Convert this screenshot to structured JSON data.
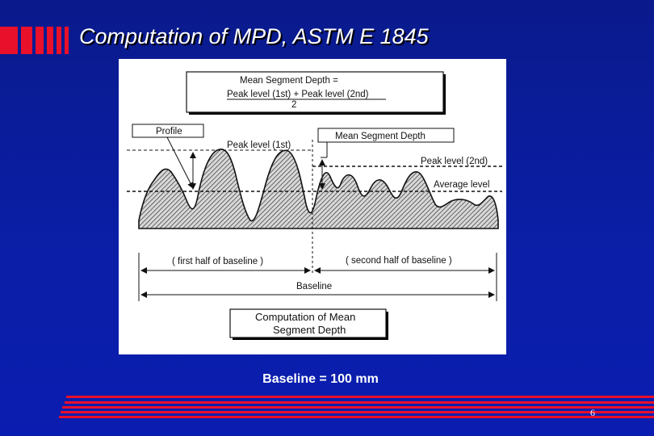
{
  "slide": {
    "title": "Computation of MPD, ASTM E 1845",
    "caption": "Baseline = 100 mm",
    "page_number": "6"
  },
  "diagram": {
    "formula": {
      "line1": "Mean Segment Depth =",
      "line2": "Peak level (1st) + Peak level (2nd)",
      "line3": "2"
    },
    "labels": {
      "profile": "Profile",
      "peak_first": "Peak level (1st)",
      "mean_segment_depth": "Mean Segment Depth",
      "peak_second": "Peak level (2nd)",
      "average_level": "Average level",
      "first_half": "( first half of baseline )",
      "second_half": "( second half of baseline )",
      "baseline": "Baseline"
    },
    "bottom_box": {
      "line1": "Computation of Mean",
      "line2": "Segment Depth"
    }
  },
  "colors": {
    "background": "#0a1ea6",
    "accent_red": "#e8102a",
    "title_text": "#ffffff"
  }
}
